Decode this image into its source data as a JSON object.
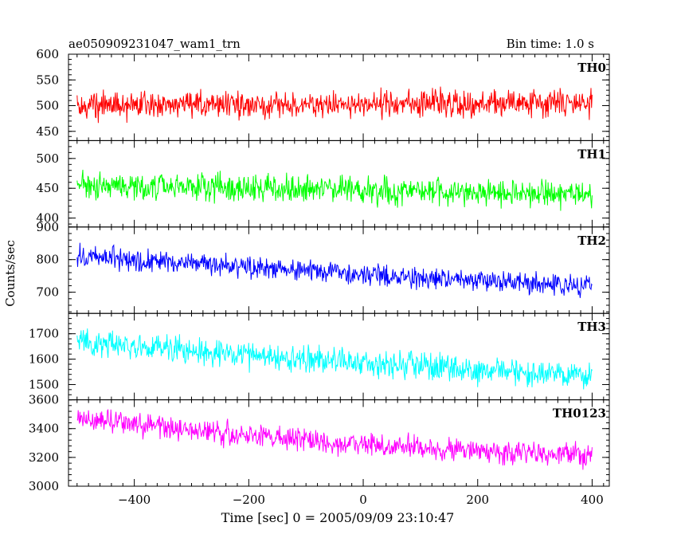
{
  "header": {
    "title": "ae050909231047_wam1_trn",
    "bin_time": "Bin time: 1.0 s"
  },
  "chart_data": {
    "type": "line",
    "title": "ae050909231047_wam1_trn",
    "subtitle": "Bin time: 1.0 s",
    "xlabel": "Time [sec] 0 = 2005/09/09 23:10:47",
    "ylabel": "Counts/sec",
    "xlim": [
      -515,
      430
    ],
    "x_range_data": [
      -500,
      400
    ],
    "x_ticks": [
      -400,
      -200,
      0,
      200,
      400
    ],
    "x_tick_labels": [
      "−400",
      "−200",
      "0",
      "200",
      "400"
    ],
    "grid": false,
    "panels": [
      {
        "name": "TH0",
        "color": "#ff0000",
        "ylim": [
          432,
          600
        ],
        "y_ticks": [
          450,
          500,
          550,
          600
        ],
        "y_tick_labels": [
          "450",
          "500",
          "550",
          "600"
        ],
        "trend": [
          [
            -500,
            500
          ],
          [
            400,
            505
          ]
        ],
        "noise_amplitude": 38
      },
      {
        "name": "TH1",
        "color": "#00ff00",
        "ylim": [
          385,
          530
        ],
        "y_ticks": [
          400,
          450,
          500
        ],
        "y_tick_labels": [
          "400",
          "450",
          "500"
        ],
        "trend": [
          [
            -500,
            455
          ],
          [
            400,
            440
          ]
        ],
        "noise_amplitude": 34
      },
      {
        "name": "TH2",
        "color": "#0000ff",
        "ylim": [
          635,
          900
        ],
        "y_ticks": [
          700,
          800,
          900
        ],
        "y_tick_labels": [
          "700",
          "800",
          "900"
        ],
        "trend": [
          [
            -500,
            810
          ],
          [
            -300,
            790
          ],
          [
            0,
            755
          ],
          [
            400,
            715
          ]
        ],
        "noise_amplitude": 48
      },
      {
        "name": "TH3",
        "color": "#00ffff",
        "ylim": [
          1440,
          1780
        ],
        "y_ticks": [
          1500,
          1600,
          1700
        ],
        "y_tick_labels": [
          "1500",
          "1600",
          "1700"
        ],
        "trend": [
          [
            -500,
            1670
          ],
          [
            -300,
            1630
          ],
          [
            0,
            1585
          ],
          [
            400,
            1530
          ]
        ],
        "noise_amplitude": 75
      },
      {
        "name": "TH0123",
        "color": "#ff00ff",
        "ylim": [
          3000,
          3600
        ],
        "y_ticks": [
          3000,
          3200,
          3400,
          3600
        ],
        "y_tick_labels": [
          "3000",
          "3200",
          "3400",
          "3600"
        ],
        "trend": [
          [
            -500,
            3460
          ],
          [
            -300,
            3390
          ],
          [
            0,
            3280
          ],
          [
            400,
            3210
          ]
        ],
        "noise_amplitude": 120
      }
    ]
  }
}
